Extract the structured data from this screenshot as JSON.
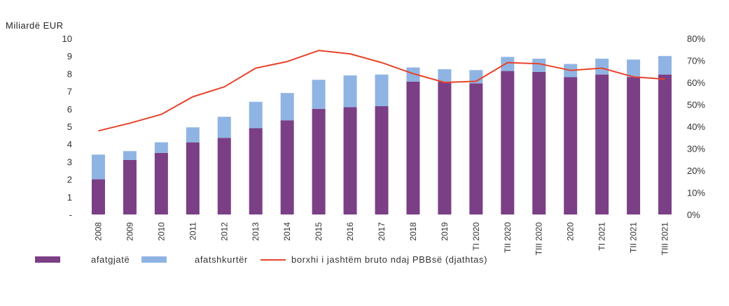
{
  "chart_data": {
    "type": "bar",
    "stacked": true,
    "left_axis_label": "Miliardë EUR",
    "left_ticks": [
      "-",
      "1",
      "2",
      "3",
      "4",
      "5",
      "6",
      "7",
      "8",
      "9",
      "10"
    ],
    "right_ticks": [
      "0%",
      "10%",
      "20%",
      "30%",
      "40%",
      "50%",
      "60%",
      "70%",
      "80%"
    ],
    "ylim_left": [
      0,
      10
    ],
    "ylim_right": [
      0,
      80
    ],
    "categories": [
      "2008",
      "2009",
      "2010",
      "2011",
      "2012",
      "2013",
      "2014",
      "2015",
      "2016",
      "2017",
      "2018",
      "2019",
      "TI 2020",
      "TII 2020",
      "TIII 2020",
      "2020",
      "TI 2021",
      "TII 2021",
      "TIII 2021"
    ],
    "series": [
      {
        "name": "afatgjatë",
        "axis": "left",
        "kind": "bar",
        "color": "#7B3F86",
        "values": [
          2.0,
          3.1,
          3.5,
          4.1,
          4.35,
          4.9,
          5.35,
          6.0,
          6.1,
          6.15,
          7.55,
          7.55,
          7.45,
          8.15,
          8.1,
          7.8,
          7.95,
          7.8,
          7.95
        ]
      },
      {
        "name": "afatshkurtër",
        "axis": "left",
        "kind": "bar",
        "color": "#8FB4E3",
        "values": [
          1.4,
          0.5,
          0.6,
          0.85,
          1.2,
          1.5,
          1.55,
          1.65,
          1.8,
          1.8,
          0.8,
          0.7,
          0.75,
          0.8,
          0.75,
          0.75,
          0.9,
          1.0,
          1.05
        ]
      },
      {
        "name": "borxhi i jashtëm bruto ndaj PBBsë (djathtas)",
        "axis": "right",
        "kind": "line",
        "color": "#E8432A",
        "values": [
          38,
          41.5,
          45.5,
          53.5,
          58,
          66.5,
          69.5,
          74.5,
          73,
          69,
          64,
          60,
          60.5,
          69,
          68.5,
          65.5,
          66.5,
          62.5,
          61.5
        ]
      }
    ]
  }
}
